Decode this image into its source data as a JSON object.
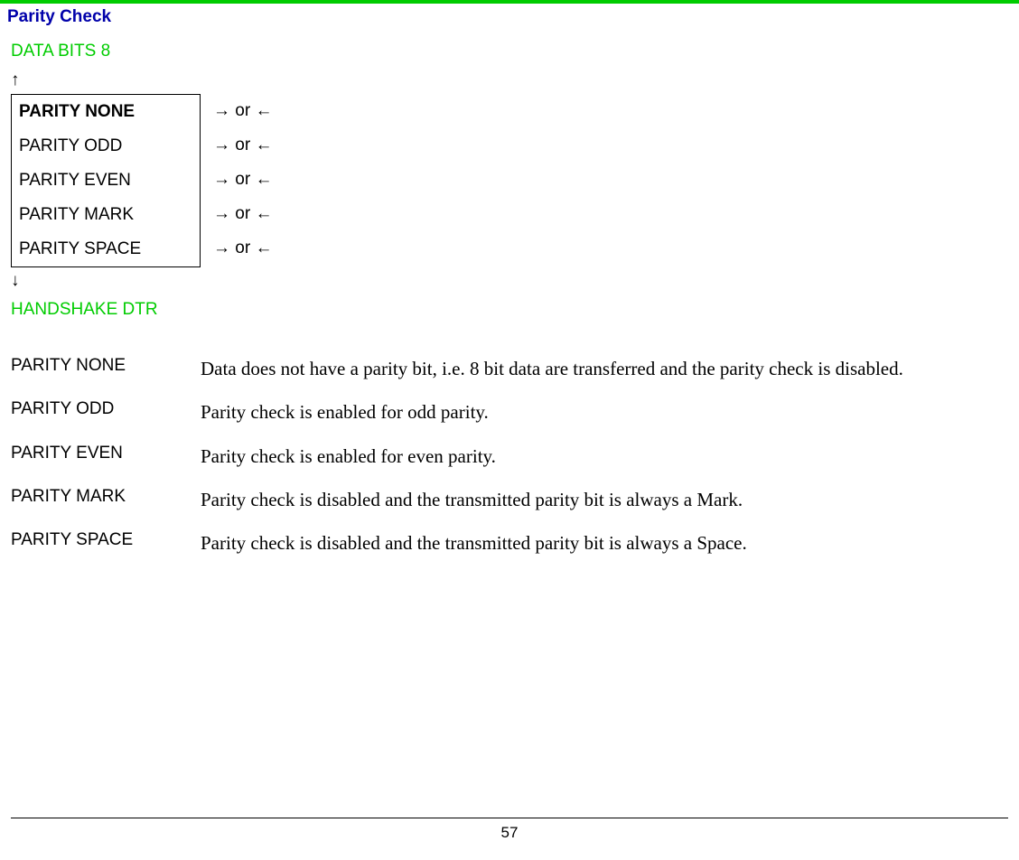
{
  "colors": {
    "green_bar": "#00cc00",
    "title_color": "#0000aa",
    "nav_green": "#00cc00",
    "text_black": "#000000",
    "background": "#ffffff"
  },
  "section_title": "Parity Check",
  "nav": {
    "prev_label": "DATA BITS 8",
    "up_arrow": "↑",
    "down_arrow": "↓",
    "next_label": "HANDSHAKE DTR"
  },
  "menu": {
    "items": [
      {
        "label": "PARITY NONE",
        "selected": true
      },
      {
        "label": "PARITY ODD",
        "selected": false
      },
      {
        "label": "PARITY EVEN",
        "selected": false
      },
      {
        "label": "PARITY MARK",
        "selected": false
      },
      {
        "label": "PARITY SPACE",
        "selected": false
      }
    ],
    "side_arrow_text": "→ or ←"
  },
  "descriptions": [
    {
      "term": "PARITY NONE",
      "text": "Data does not have a parity bit, i.e. 8 bit data are transferred and the parity check is disabled."
    },
    {
      "term": "PARITY ODD",
      "text": "Parity check is enabled for odd parity."
    },
    {
      "term": "PARITY EVEN",
      "text": "Parity check is enabled for even parity."
    },
    {
      "term": "PARITY MARK",
      "text": "Parity check is disabled and the transmitted parity bit is always a Mark."
    },
    {
      "term": "PARITY SPACE",
      "text": "Parity check is disabled and the transmitted parity bit is always a Space."
    }
  ],
  "page_number": "57"
}
